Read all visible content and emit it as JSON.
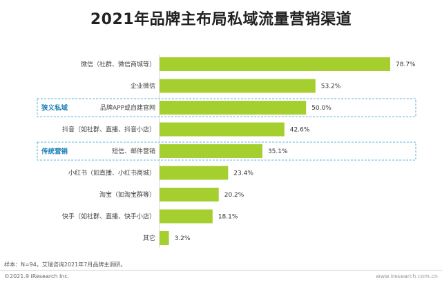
{
  "title": "2021年品牌主布局私域流量营销渠道",
  "chart_data": {
    "type": "bar",
    "orientation": "horizontal",
    "categories": [
      "微信（社群、微信商城等）",
      "企业微信",
      "品牌APP或自建官网",
      "抖音（如社群、直播、抖音小店）",
      "短信、邮件营销",
      "小红书（如直播、小红书商城）",
      "淘宝（如淘宝群等）",
      "快手（如社群、直播、快手小店）",
      "其它"
    ],
    "values": [
      78.7,
      53.2,
      50.0,
      42.6,
      35.1,
      23.4,
      20.2,
      18.1,
      3.2
    ],
    "value_labels": [
      "78.7%",
      "53.2%",
      "50.0%",
      "42.6%",
      "35.1%",
      "23.4%",
      "20.2%",
      "18.1%",
      "3.2%"
    ],
    "xlim": [
      0,
      100
    ],
    "bar_color": "#a5cf2f",
    "highlight_color": "#2a9fd6",
    "group_color": "#1a7fb5",
    "highlight_groups": [
      {
        "label": "狭义私域",
        "category_index": 2
      },
      {
        "label": "传统营销",
        "category_index": 4
      }
    ],
    "grid": false,
    "legend": "none"
  },
  "note": "样本：N=94，艾瑞咨询2021年7月品牌主调研。",
  "copyright": "©2021.9 iResearch Inc.",
  "site": "www.iresearch.com.cn"
}
